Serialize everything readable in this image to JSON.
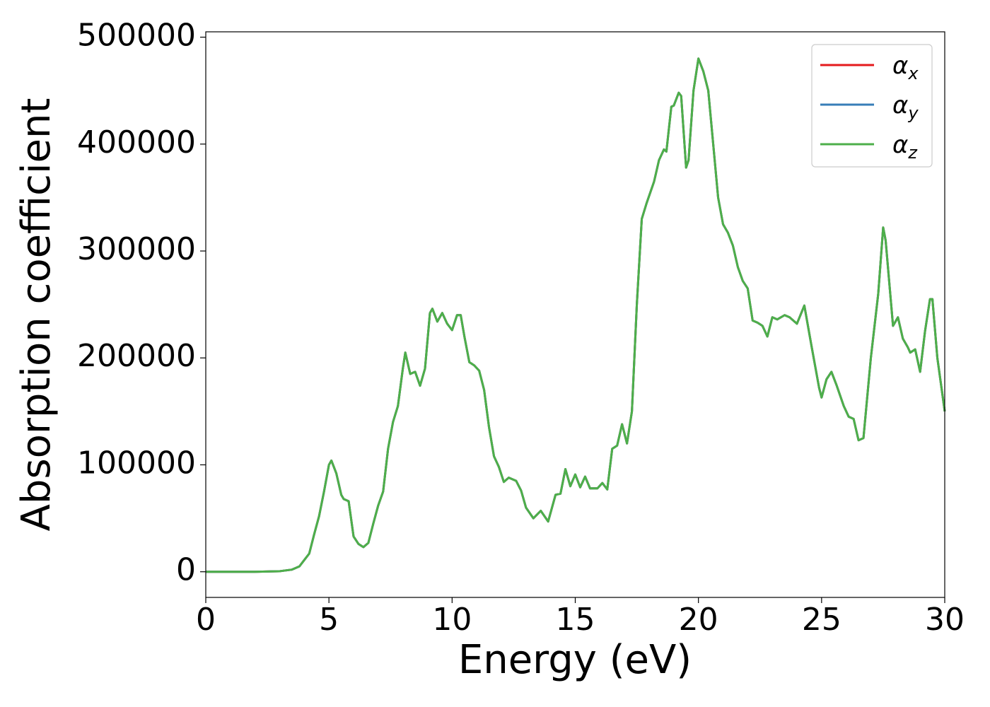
{
  "chart_data": {
    "type": "line",
    "x_label": "Energy (eV)",
    "y_label": "Absorption coefficient",
    "xlim": [
      0,
      30
    ],
    "ylim": [
      -24000,
      505000
    ],
    "xticks": [
      0,
      5,
      10,
      15,
      20,
      25,
      30
    ],
    "yticks": [
      0,
      100000,
      200000,
      300000,
      400000,
      500000
    ],
    "legend": "upper right",
    "x": [
      0,
      1,
      2,
      3,
      3.5,
      3.8,
      4.0,
      4.2,
      4.4,
      4.6,
      4.8,
      5.0,
      5.1,
      5.3,
      5.5,
      5.6,
      5.8,
      6.0,
      6.2,
      6.4,
      6.6,
      6.8,
      7.0,
      7.2,
      7.4,
      7.6,
      7.8,
      8.0,
      8.1,
      8.3,
      8.5,
      8.7,
      8.9,
      9.1,
      9.2,
      9.4,
      9.6,
      9.8,
      10.0,
      10.2,
      10.35,
      10.5,
      10.7,
      10.9,
      11.1,
      11.3,
      11.5,
      11.7,
      11.9,
      12.1,
      12.3,
      12.6,
      12.8,
      13.0,
      13.3,
      13.6,
      13.9,
      14.2,
      14.4,
      14.6,
      14.8,
      15.0,
      15.2,
      15.4,
      15.6,
      15.9,
      16.1,
      16.3,
      16.5,
      16.7,
      16.9,
      17.1,
      17.3,
      17.5,
      17.7,
      17.9,
      18.2,
      18.4,
      18.6,
      18.7,
      18.9,
      19.0,
      19.2,
      19.3,
      19.5,
      19.6,
      19.8,
      20.0,
      20.2,
      20.4,
      20.6,
      20.8,
      21.0,
      21.2,
      21.4,
      21.6,
      21.8,
      22.0,
      22.2,
      22.4,
      22.6,
      22.8,
      23.0,
      23.2,
      23.5,
      23.7,
      24.0,
      24.3,
      24.6,
      24.9,
      25.0,
      25.2,
      25.4,
      25.6,
      25.9,
      26.1,
      26.3,
      26.5,
      26.7,
      27.0,
      27.3,
      27.5,
      27.6,
      27.9,
      28.1,
      28.3,
      28.5,
      28.6,
      28.8,
      29.0,
      29.2,
      29.4,
      29.5,
      29.7,
      30.0
    ],
    "series": [
      {
        "name": "αx",
        "color": "#e41a1c",
        "values": [
          0,
          0,
          0,
          500,
          2000,
          5000,
          11000,
          17000,
          35000,
          52000,
          75000,
          100000,
          104000,
          92000,
          72000,
          68000,
          66000,
          33000,
          26000,
          23000,
          27000,
          45000,
          62000,
          75000,
          115000,
          140000,
          155000,
          190000,
          205000,
          185000,
          187000,
          174000,
          190000,
          242000,
          246000,
          234000,
          242000,
          232000,
          226000,
          240000,
          240000,
          220000,
          196000,
          193000,
          188000,
          170000,
          135000,
          108000,
          98000,
          84000,
          88000,
          85000,
          76000,
          60000,
          50000,
          57000,
          47000,
          72000,
          73000,
          96000,
          80000,
          91000,
          79000,
          89000,
          78000,
          78000,
          83000,
          77000,
          115000,
          118000,
          138000,
          120000,
          150000,
          250000,
          330000,
          345000,
          365000,
          385000,
          395000,
          393000,
          435000,
          436000,
          448000,
          445000,
          378000,
          385000,
          450000,
          480000,
          468000,
          450000,
          400000,
          350000,
          325000,
          317000,
          305000,
          285000,
          272000,
          265000,
          235000,
          233000,
          230000,
          220000,
          238000,
          236000,
          240000,
          238000,
          232000,
          249000,
          210000,
          172000,
          163000,
          180000,
          187000,
          175000,
          155000,
          145000,
          143000,
          123000,
          125000,
          200000,
          260000,
          322000,
          310000,
          230000,
          238000,
          218000,
          210000,
          205000,
          208000,
          187000,
          225000,
          255000,
          255000,
          200000,
          150000
        ]
      },
      {
        "name": "αy",
        "color": "#377eb8",
        "values": [
          0,
          0,
          0,
          500,
          2000,
          5000,
          11000,
          17000,
          35000,
          52000,
          75000,
          100000,
          104000,
          92000,
          72000,
          68000,
          66000,
          33000,
          26000,
          23000,
          27000,
          45000,
          62000,
          75000,
          115000,
          140000,
          155000,
          190000,
          205000,
          185000,
          187000,
          174000,
          190000,
          242000,
          246000,
          234000,
          242000,
          232000,
          226000,
          240000,
          240000,
          220000,
          196000,
          193000,
          188000,
          170000,
          135000,
          108000,
          98000,
          84000,
          88000,
          85000,
          76000,
          60000,
          50000,
          57000,
          47000,
          72000,
          73000,
          96000,
          80000,
          91000,
          79000,
          89000,
          78000,
          78000,
          83000,
          77000,
          115000,
          118000,
          138000,
          120000,
          150000,
          250000,
          330000,
          345000,
          365000,
          385000,
          395000,
          393000,
          435000,
          436000,
          448000,
          445000,
          378000,
          385000,
          450000,
          480000,
          468000,
          450000,
          400000,
          350000,
          325000,
          317000,
          305000,
          285000,
          272000,
          265000,
          235000,
          233000,
          230000,
          220000,
          238000,
          236000,
          240000,
          238000,
          232000,
          249000,
          210000,
          172000,
          163000,
          180000,
          187000,
          175000,
          155000,
          145000,
          143000,
          123000,
          125000,
          200000,
          260000,
          322000,
          310000,
          230000,
          238000,
          218000,
          210000,
          205000,
          208000,
          187000,
          225000,
          255000,
          255000,
          200000,
          150000
        ]
      },
      {
        "name": "αz",
        "color": "#4daf4a",
        "values": [
          0,
          0,
          0,
          500,
          2000,
          5000,
          11000,
          17000,
          35000,
          52000,
          75000,
          100000,
          104000,
          92000,
          72000,
          68000,
          66000,
          33000,
          26000,
          23000,
          27000,
          45000,
          62000,
          75000,
          115000,
          140000,
          155000,
          190000,
          205000,
          185000,
          187000,
          174000,
          190000,
          242000,
          246000,
          234000,
          242000,
          232000,
          226000,
          240000,
          240000,
          220000,
          196000,
          193000,
          188000,
          170000,
          135000,
          108000,
          98000,
          84000,
          88000,
          85000,
          76000,
          60000,
          50000,
          57000,
          47000,
          72000,
          73000,
          96000,
          80000,
          91000,
          79000,
          89000,
          78000,
          78000,
          83000,
          77000,
          115000,
          118000,
          138000,
          120000,
          150000,
          250000,
          330000,
          345000,
          365000,
          385000,
          395000,
          393000,
          435000,
          436000,
          448000,
          445000,
          378000,
          385000,
          450000,
          480000,
          468000,
          450000,
          400000,
          350000,
          325000,
          317000,
          305000,
          285000,
          272000,
          265000,
          235000,
          233000,
          230000,
          220000,
          238000,
          236000,
          240000,
          238000,
          232000,
          249000,
          210000,
          172000,
          163000,
          180000,
          187000,
          175000,
          155000,
          145000,
          143000,
          123000,
          125000,
          200000,
          260000,
          322000,
          310000,
          230000,
          238000,
          218000,
          210000,
          205000,
          208000,
          187000,
          225000,
          255000,
          255000,
          200000,
          150000
        ]
      }
    ]
  }
}
